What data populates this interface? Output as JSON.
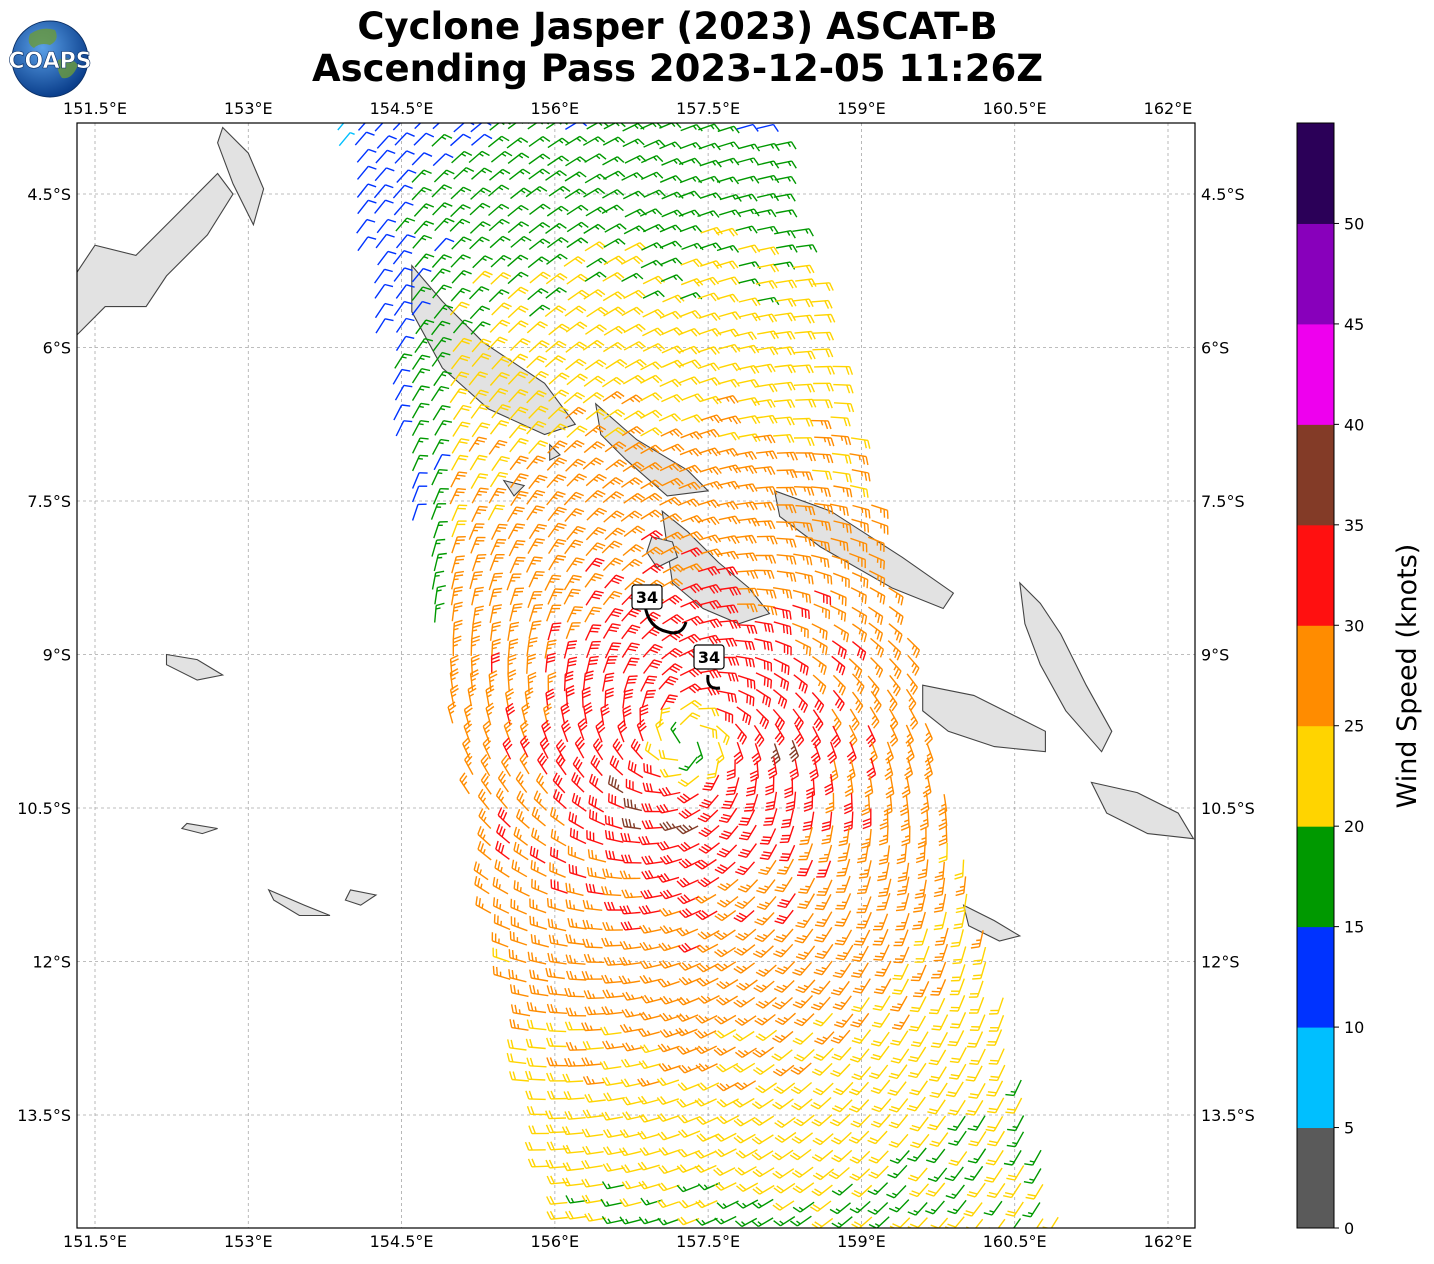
{
  "title_line1": "Cyclone Jasper (2023) ASCAT-B",
  "title_line2": "Ascending Pass 2023-12-05 11:26Z",
  "logo": {
    "text": "COAPS",
    "icon": "globe-icon"
  },
  "map": {
    "lon_ticks": [
      "151.5°E",
      "153°E",
      "154.5°E",
      "156°E",
      "157.5°E",
      "159°E",
      "160.5°E",
      "162°E"
    ],
    "lat_ticks": [
      "4.5°S",
      "6°S",
      "7.5°S",
      "9°S",
      "10.5°S",
      "12°S",
      "13.5°S"
    ],
    "lon_range": [
      151.3,
      162.25
    ],
    "lat_range": [
      -3.8,
      -14.6
    ],
    "gridlines": true,
    "storm_center": {
      "lon": 157.3,
      "lat": -9.85
    },
    "contour_labels": [
      "34",
      "34"
    ],
    "landmasses": [
      {
        "name": "new-ireland-north",
        "pts": [
          [
            152.75,
            -3.85
          ],
          [
            153.0,
            -4.1
          ],
          [
            153.15,
            -4.45
          ],
          [
            153.05,
            -4.8
          ],
          [
            152.85,
            -4.4
          ],
          [
            152.7,
            -4.0
          ]
        ]
      },
      {
        "name": "new-britain",
        "pts": [
          [
            151.3,
            -5.3
          ],
          [
            151.5,
            -5.0
          ],
          [
            151.9,
            -5.1
          ],
          [
            152.3,
            -4.7
          ],
          [
            152.7,
            -4.3
          ],
          [
            152.85,
            -4.5
          ],
          [
            152.6,
            -4.9
          ],
          [
            152.2,
            -5.3
          ],
          [
            152.0,
            -5.6
          ],
          [
            151.6,
            -5.6
          ],
          [
            151.3,
            -5.9
          ]
        ]
      },
      {
        "name": "bougainville",
        "pts": [
          [
            154.6,
            -5.2
          ],
          [
            154.9,
            -5.55
          ],
          [
            155.3,
            -5.95
          ],
          [
            155.9,
            -6.35
          ],
          [
            156.2,
            -6.75
          ],
          [
            155.9,
            -6.85
          ],
          [
            155.35,
            -6.6
          ],
          [
            154.9,
            -6.2
          ],
          [
            154.6,
            -5.65
          ]
        ]
      },
      {
        "name": "choiseul",
        "pts": [
          [
            156.4,
            -6.55
          ],
          [
            156.8,
            -6.9
          ],
          [
            157.3,
            -7.2
          ],
          [
            157.5,
            -7.4
          ],
          [
            157.1,
            -7.45
          ],
          [
            156.7,
            -7.1
          ],
          [
            156.45,
            -6.85
          ]
        ]
      },
      {
        "name": "santa-isabel",
        "pts": [
          [
            158.15,
            -7.4
          ],
          [
            158.7,
            -7.6
          ],
          [
            159.4,
            -8.05
          ],
          [
            159.9,
            -8.4
          ],
          [
            159.8,
            -8.55
          ],
          [
            159.3,
            -8.35
          ],
          [
            158.6,
            -7.95
          ],
          [
            158.2,
            -7.65
          ]
        ]
      },
      {
        "name": "new-georgia",
        "pts": [
          [
            157.05,
            -7.6
          ],
          [
            157.3,
            -7.8
          ],
          [
            157.6,
            -8.1
          ],
          [
            157.9,
            -8.35
          ],
          [
            158.1,
            -8.6
          ],
          [
            157.8,
            -8.7
          ],
          [
            157.45,
            -8.55
          ],
          [
            157.15,
            -8.3
          ]
        ]
      },
      {
        "name": "kolombangara",
        "pts": [
          [
            156.95,
            -7.85
          ],
          [
            157.15,
            -7.9
          ],
          [
            157.2,
            -8.05
          ],
          [
            157.0,
            -8.15
          ],
          [
            156.9,
            -8.0
          ]
        ]
      },
      {
        "name": "guadalcanal",
        "pts": [
          [
            159.6,
            -9.3
          ],
          [
            160.1,
            -9.4
          ],
          [
            160.5,
            -9.6
          ],
          [
            160.8,
            -9.75
          ],
          [
            160.8,
            -9.95
          ],
          [
            160.3,
            -9.9
          ],
          [
            159.85,
            -9.75
          ],
          [
            159.6,
            -9.55
          ]
        ]
      },
      {
        "name": "malaita",
        "pts": [
          [
            160.55,
            -8.3
          ],
          [
            160.75,
            -8.5
          ],
          [
            160.95,
            -8.8
          ],
          [
            161.2,
            -9.3
          ],
          [
            161.45,
            -9.75
          ],
          [
            161.35,
            -9.95
          ],
          [
            161.0,
            -9.55
          ],
          [
            160.75,
            -9.1
          ],
          [
            160.6,
            -8.7
          ]
        ]
      },
      {
        "name": "makira",
        "pts": [
          [
            161.25,
            -10.25
          ],
          [
            161.7,
            -10.35
          ],
          [
            162.1,
            -10.55
          ],
          [
            162.25,
            -10.8
          ],
          [
            161.8,
            -10.75
          ],
          [
            161.4,
            -10.55
          ]
        ]
      },
      {
        "name": "rennell",
        "pts": [
          [
            160.0,
            -11.45
          ],
          [
            160.3,
            -11.6
          ],
          [
            160.55,
            -11.75
          ],
          [
            160.35,
            -11.8
          ],
          [
            160.05,
            -11.65
          ]
        ]
      },
      {
        "name": "woodlark",
        "pts": [
          [
            152.2,
            -9.0
          ],
          [
            152.5,
            -9.05
          ],
          [
            152.75,
            -9.2
          ],
          [
            152.5,
            -9.25
          ],
          [
            152.2,
            -9.1
          ]
        ]
      },
      {
        "name": "misima",
        "pts": [
          [
            152.4,
            -10.65
          ],
          [
            152.7,
            -10.7
          ],
          [
            152.55,
            -10.75
          ],
          [
            152.35,
            -10.7
          ]
        ]
      },
      {
        "name": "rossel",
        "pts": [
          [
            153.2,
            -11.3
          ],
          [
            153.55,
            -11.45
          ],
          [
            153.8,
            -11.55
          ],
          [
            153.5,
            -11.55
          ],
          [
            153.25,
            -11.4
          ]
        ]
      },
      {
        "name": "sudest",
        "pts": [
          [
            154.0,
            -11.3
          ],
          [
            154.25,
            -11.35
          ],
          [
            154.1,
            -11.45
          ],
          [
            153.95,
            -11.4
          ]
        ]
      },
      {
        "name": "treasury",
        "pts": [
          [
            155.5,
            -7.3
          ],
          [
            155.7,
            -7.35
          ],
          [
            155.6,
            -7.45
          ]
        ]
      },
      {
        "name": "shortland",
        "pts": [
          [
            155.95,
            -6.95
          ],
          [
            156.05,
            -7.05
          ],
          [
            155.95,
            -7.1
          ]
        ]
      }
    ]
  },
  "colorbar": {
    "label": "Wind Speed (knots)",
    "ticks": [
      "0",
      "5",
      "10",
      "15",
      "20",
      "25",
      "30",
      "35",
      "40",
      "45",
      "50"
    ],
    "colors": [
      "#5a5a5a",
      "#00bfff",
      "#0033ff",
      "#009900",
      "#ffd400",
      "#ff8c00",
      "#ff1010",
      "#833b27",
      "#ee00ee",
      "#8800bb",
      "#2b0058"
    ]
  }
}
